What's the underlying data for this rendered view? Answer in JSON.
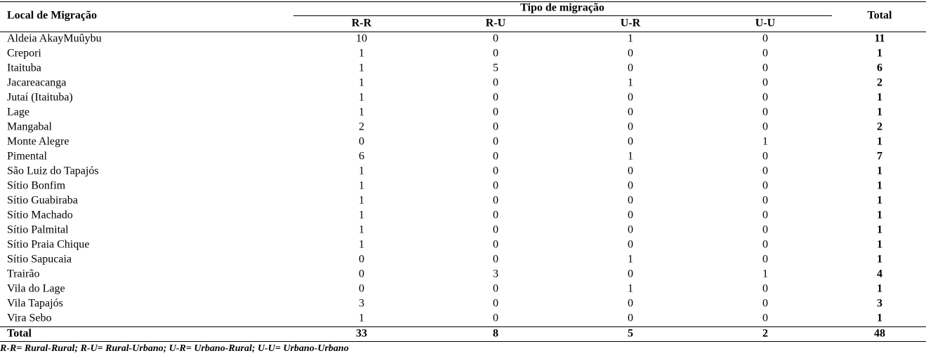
{
  "table": {
    "header": {
      "location": "Local de Migração",
      "group": "Tipo de migração",
      "subcolumns": [
        "R-R",
        "R-U",
        "U-R",
        "U-U"
      ],
      "total": "Total"
    },
    "rows": [
      [
        "Aldeia AkayMuûybu",
        10,
        0,
        1,
        0,
        11
      ],
      [
        "Crepori",
        1,
        0,
        0,
        0,
        1
      ],
      [
        "Itaituba",
        1,
        5,
        0,
        0,
        6
      ],
      [
        "Jacareacanga",
        1,
        0,
        1,
        0,
        2
      ],
      [
        "Jutaí (Itaituba)",
        1,
        0,
        0,
        0,
        1
      ],
      [
        "Lage",
        1,
        0,
        0,
        0,
        1
      ],
      [
        "Mangabal",
        2,
        0,
        0,
        0,
        2
      ],
      [
        "Monte Alegre",
        0,
        0,
        0,
        1,
        1
      ],
      [
        "Pimental",
        6,
        0,
        1,
        0,
        7
      ],
      [
        "São Luiz do Tapajós",
        1,
        0,
        0,
        0,
        1
      ],
      [
        "Sítio Bonfim",
        1,
        0,
        0,
        0,
        1
      ],
      [
        "Sítio Guabiraba",
        1,
        0,
        0,
        0,
        1
      ],
      [
        "Sítio Machado",
        1,
        0,
        0,
        0,
        1
      ],
      [
        "Sítio Palmital",
        1,
        0,
        0,
        0,
        1
      ],
      [
        "Sítio Praia Chique",
        1,
        0,
        0,
        0,
        1
      ],
      [
        "Sítio Sapucaia",
        0,
        0,
        1,
        0,
        1
      ],
      [
        "Trairão",
        0,
        3,
        0,
        1,
        4
      ],
      [
        "Vila do Lage",
        0,
        0,
        1,
        0,
        1
      ],
      [
        "Vila Tapajós",
        3,
        0,
        0,
        0,
        3
      ],
      [
        "Vira Sebo",
        1,
        0,
        0,
        0,
        1
      ]
    ],
    "total_row": [
      "Total",
      33,
      8,
      5,
      2,
      48
    ],
    "footnote": "R-R= Rural-Rural; R-U= Rural-Urbano; U-R= Urbano-Rural; U-U= Urbano-Urbano"
  }
}
